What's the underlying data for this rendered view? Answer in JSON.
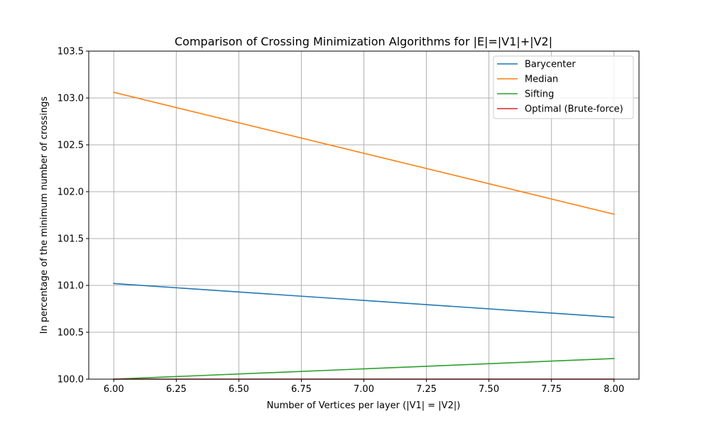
{
  "chart_data": {
    "type": "line",
    "title": "Comparison of Crossing Minimization Algorithms for |E|=|V1|+|V2|",
    "xlabel": "Number of Vertices per layer (|V1| = |V2|)",
    "ylabel": "In percentage of the minimum number of crossings",
    "xlim": [
      5.9,
      8.1
    ],
    "ylim": [
      100.0,
      103.5
    ],
    "x_ticks": [
      "6.00",
      "6.25",
      "6.50",
      "6.75",
      "7.00",
      "7.25",
      "7.50",
      "7.75",
      "8.00"
    ],
    "y_ticks": [
      "100.0",
      "100.5",
      "101.0",
      "101.5",
      "102.0",
      "102.5",
      "103.0",
      "103.5"
    ],
    "grid": true,
    "legend_position": "top-right",
    "x": [
      6,
      8
    ],
    "series": [
      {
        "name": "Barycenter",
        "values": [
          101.02,
          100.66
        ],
        "color": "#1f77b4"
      },
      {
        "name": "Median",
        "values": [
          103.06,
          101.76
        ],
        "color": "#ff7f0e"
      },
      {
        "name": "Sifting",
        "values": [
          100.0,
          100.22
        ],
        "color": "#2ca02c"
      },
      {
        "name": "Optimal (Brute-force)",
        "values": [
          100.0,
          100.0
        ],
        "color": "#d62728"
      }
    ]
  }
}
